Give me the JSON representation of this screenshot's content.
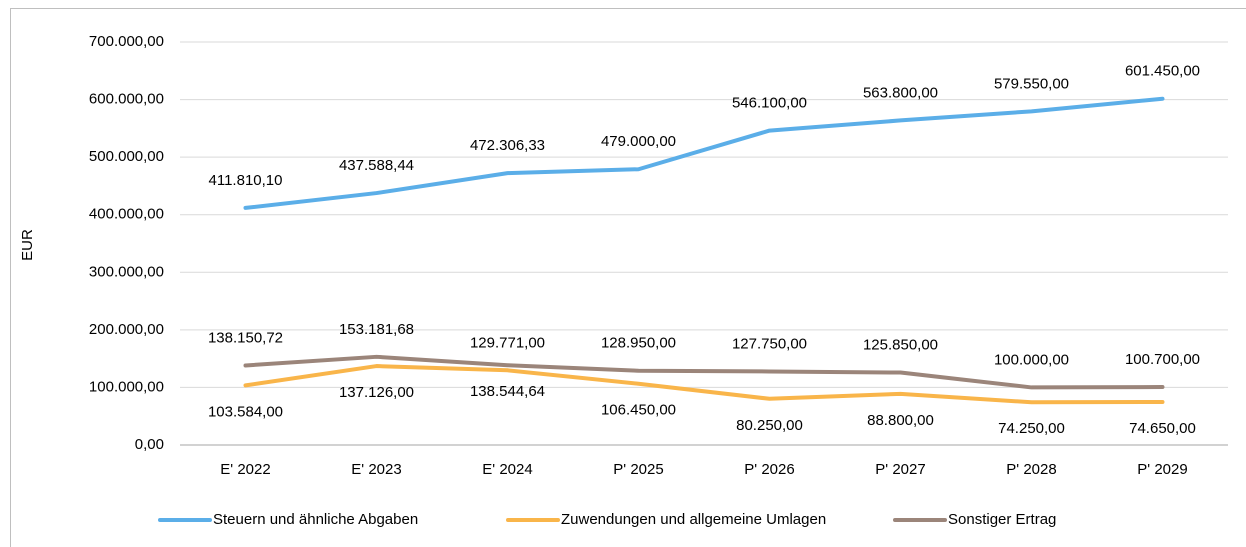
{
  "chart_data": {
    "type": "line",
    "y_label": "EUR",
    "categories": [
      "E' 2022",
      "E' 2023",
      "E' 2024",
      "P' 2025",
      "P' 2026",
      "P' 2027",
      "P' 2028",
      "P' 2029"
    ],
    "series": [
      {
        "name": "Steuern und ähnliche Abgaben",
        "color": "#5baee8",
        "values": [
          411810.1,
          437588.44,
          472306.33,
          479000,
          546100,
          563800,
          579550,
          601450
        ],
        "value_labels": [
          "411.810,10",
          "437.588,44",
          "472.306,33",
          "479.000,00",
          "546.100,00",
          "563.800,00",
          "579.550,00",
          "601.450,00"
        ]
      },
      {
        "name": "Zuwendungen und allgemeine Umlagen",
        "color": "#f9b54a",
        "values": [
          103584,
          137126,
          129771,
          106450,
          80250,
          88800,
          74250,
          74650
        ],
        "value_labels": [
          "103.584,00",
          "137.126,00",
          "129.771,00",
          "106.450,00",
          "80.250,00",
          "88.800,00",
          "74.250,00",
          "74.650,00"
        ]
      },
      {
        "name": "Sonstiger Ertrag",
        "color": "#9b857a",
        "values": [
          138150.72,
          153181.68,
          138544.64,
          128950,
          127750,
          125850,
          100000,
          100700
        ],
        "value_labels": [
          "138.150,72",
          "153.181,68",
          "138.544,64",
          "128.950,00",
          "127.750,00",
          "125.850,00",
          "100.000,00",
          "100.700,00"
        ]
      }
    ],
    "ylim": [
      0,
      700000
    ],
    "yticks": [
      {
        "value": 0,
        "label": "0,00"
      },
      {
        "value": 100000,
        "label": "100.000,00"
      },
      {
        "value": 200000,
        "label": "200.000,00"
      },
      {
        "value": 300000,
        "label": "300.000,00"
      },
      {
        "value": 400000,
        "label": "400.000,00"
      },
      {
        "value": 500000,
        "label": "500.000,00"
      },
      {
        "value": 600000,
        "label": "600.000,00"
      },
      {
        "value": 700000,
        "label": "700.000,00"
      }
    ],
    "grid": true,
    "legend": "bottom"
  }
}
